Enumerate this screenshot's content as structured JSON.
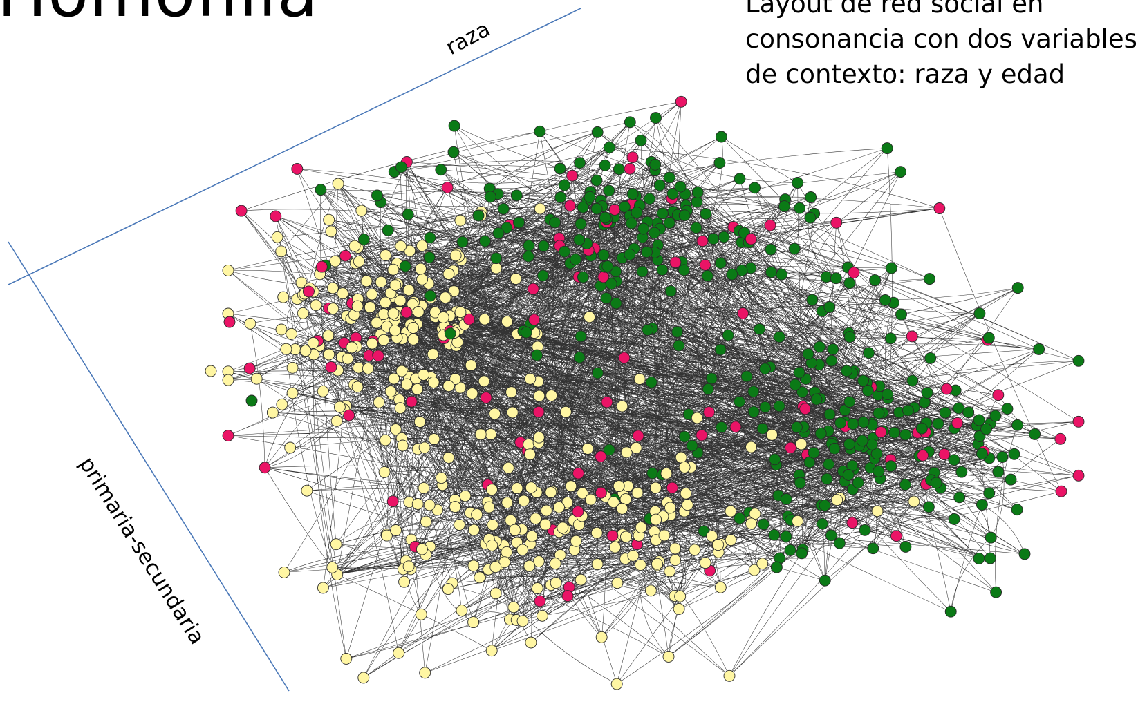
{
  "slide": {
    "title": "Homofilia",
    "caption_lines": [
      "Layout de red social en",
      "consonancia con dos variables",
      "de contexto: raza y edad"
    ]
  },
  "axes": {
    "top_label": "raza",
    "left_label": "primaria-secundaria",
    "color": "#4a78b8"
  },
  "network": {
    "node_colors": {
      "yellow": "#fff6a3",
      "pink": "#ea1466",
      "green": "#0b7a16",
      "outline": "#2a2a2a"
    },
    "edge_color": "#000000",
    "clusters": [
      {
        "group": "yellow-top-left",
        "node_color": "yellow",
        "secondary_color": "pink"
      },
      {
        "group": "green-top",
        "node_color": "green",
        "secondary_color": "pink"
      },
      {
        "group": "green-right",
        "node_color": "green",
        "secondary_color": "pink"
      },
      {
        "group": "yellow-bottom",
        "node_color": "yellow",
        "secondary_color": "pink"
      }
    ]
  }
}
